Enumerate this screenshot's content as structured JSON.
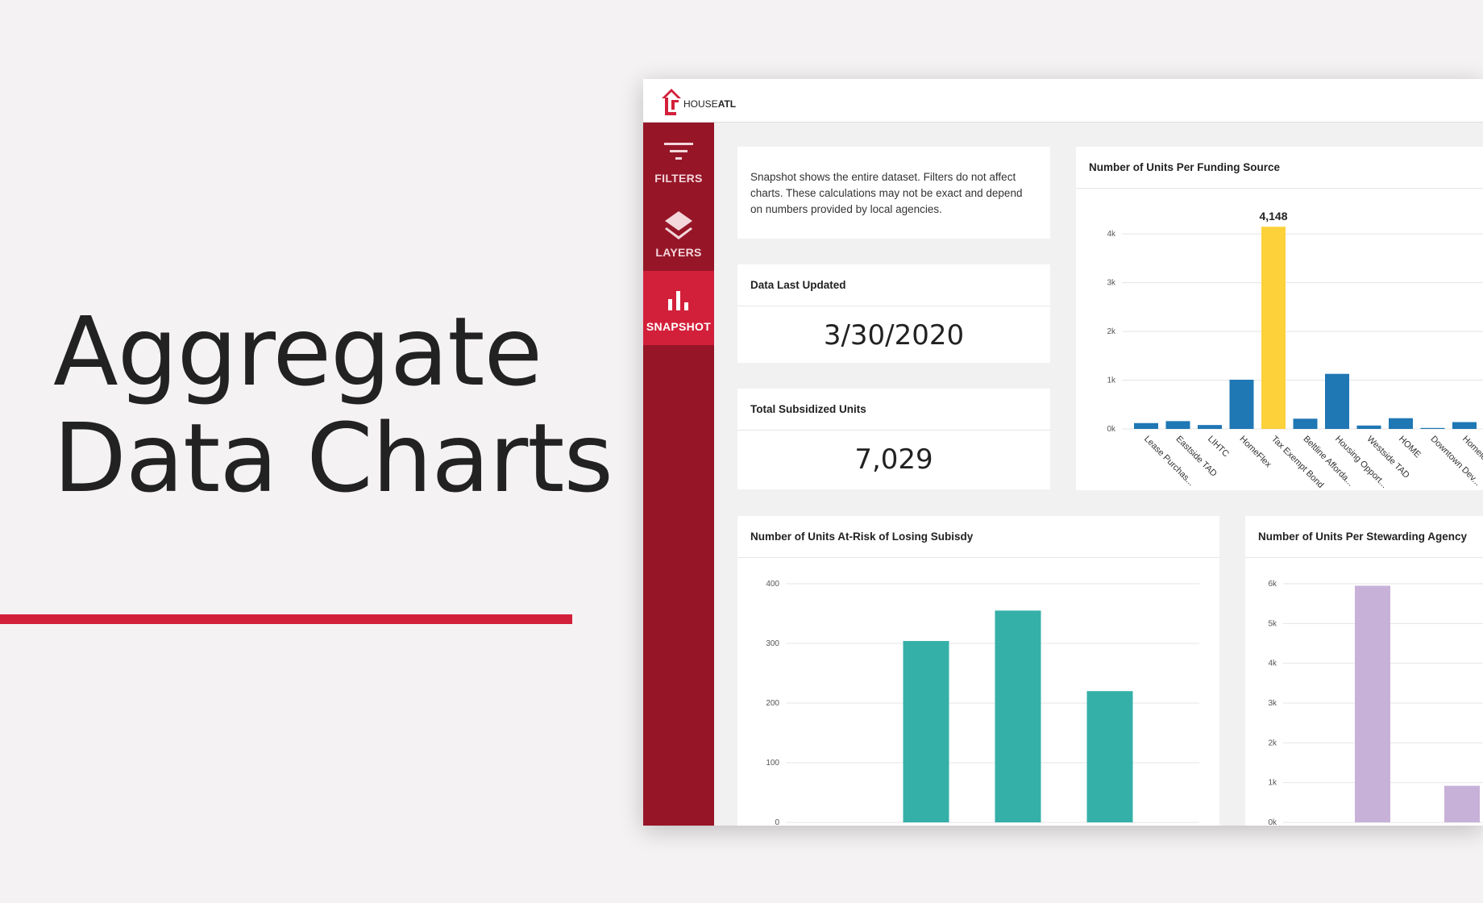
{
  "hero": {
    "line1": "Aggregate",
    "line2": "Data Charts"
  },
  "app": {
    "logo": {
      "brand": "HOUSE",
      "brand_strong": "ATL"
    },
    "nav": [
      {
        "label": "FILTERS",
        "icon": "filter-icon",
        "active": false
      },
      {
        "label": "LAYERS",
        "icon": "layers-icon",
        "active": false
      },
      {
        "label": "SNAPSHOT",
        "icon": "bar-chart-icon",
        "active": true
      }
    ],
    "note": "Snapshot shows the entire dataset. Filters do not affect charts. These calculations may not be exact and depend on numbers provided by local agencies.",
    "last_updated": {
      "title": "Data Last Updated",
      "value": "3/30/2020"
    },
    "total_units": {
      "title": "Total Subsidized Units",
      "value": "7,029"
    },
    "colors": {
      "brand_red": "#d3203a",
      "sidebar_red": "#961628",
      "bar_blue": "#1f77b4",
      "bar_highlight": "#fcd13a",
      "bar_teal": "#35b0a8",
      "bar_lilac": "#c8b1d8"
    }
  },
  "chart_data": [
    {
      "type": "bar",
      "title": "Number of Units Per Funding Source",
      "categories": [
        "Lease Purchas...",
        "Eastside TAD",
        "LIHTC",
        "HomeFlex",
        "Tax Exempt Bond",
        "Beltline Afforda...",
        "Housing Opport...",
        "Westside TAD",
        "HOME",
        "Downtown Dev...",
        "Homeless..."
      ],
      "values": [
        120,
        160,
        80,
        1010,
        4148,
        210,
        1130,
        70,
        220,
        20,
        140
      ],
      "highlight_index": 4,
      "highlight_label": "4,148",
      "yticks": [
        "0k",
        "1k",
        "2k",
        "3k",
        "4k"
      ],
      "ylim": [
        0,
        4400
      ],
      "grid": true
    },
    {
      "type": "bar",
      "title": "Number of Units At-Risk of Losing Subisdy",
      "categories": [
        "",
        "",
        "",
        ""
      ],
      "values": [
        0,
        304,
        355,
        220
      ],
      "yticks": [
        "0",
        "100",
        "200",
        "300",
        "400"
      ],
      "ylim": [
        0,
        400
      ],
      "grid": true
    },
    {
      "type": "bar",
      "title": "Number of Units Per Stewarding Agency",
      "categories": [
        "",
        ""
      ],
      "values": [
        5950,
        920
      ],
      "yticks": [
        "0k",
        "1k",
        "2k",
        "3k",
        "4k",
        "5k",
        "6k"
      ],
      "ylim": [
        0,
        6000
      ],
      "grid": true
    }
  ]
}
